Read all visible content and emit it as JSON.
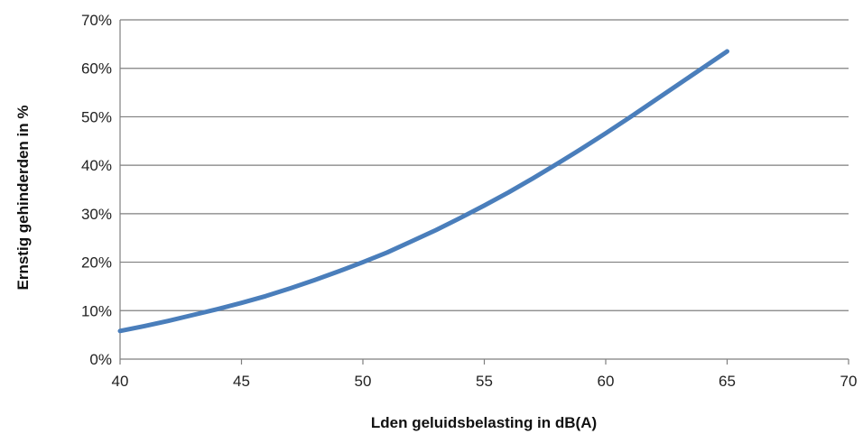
{
  "chart_data": {
    "type": "line",
    "title": "",
    "xlabel": "Lden geluidsbelasting in dB(A)",
    "ylabel": "Ernstig gehinderden in %",
    "xlim": [
      40,
      70
    ],
    "ylim": [
      0,
      70
    ],
    "x_ticks": [
      "40",
      "45",
      "50",
      "55",
      "60",
      "65",
      "70"
    ],
    "y_ticks": [
      "0%",
      "10%",
      "20%",
      "30%",
      "40%",
      "50%",
      "60%",
      "70%"
    ],
    "grid": "horizontal",
    "legend": "none",
    "series": [
      {
        "color": "#4a7ebb",
        "x": [
          40,
          41,
          42,
          43,
          44,
          45,
          46,
          47,
          48,
          49,
          50,
          51,
          52,
          53,
          54,
          55,
          56,
          57,
          58,
          59,
          60,
          61,
          62,
          63,
          64,
          65
        ],
        "y": [
          5.8,
          6.8,
          7.9,
          9.1,
          10.3,
          11.6,
          13.0,
          14.6,
          16.3,
          18.1,
          20.0,
          22.0,
          24.3,
          26.6,
          29.1,
          31.7,
          34.4,
          37.3,
          40.3,
          43.4,
          46.6,
          49.9,
          53.3,
          56.7,
          60.1,
          63.5
        ]
      }
    ]
  }
}
